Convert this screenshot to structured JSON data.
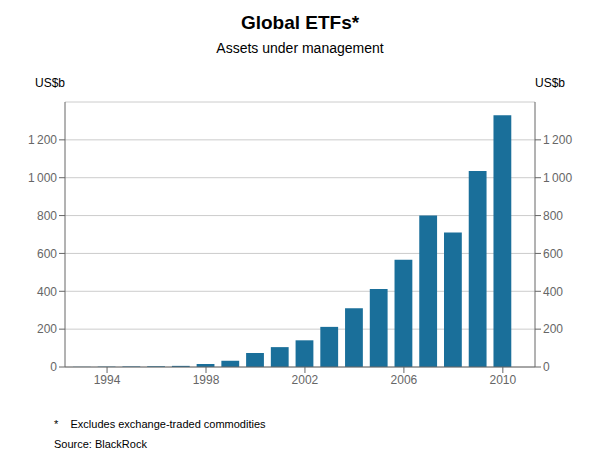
{
  "chart_data": {
    "type": "bar",
    "title": "Global ETFs*",
    "subtitle": "Assets under management",
    "ylabel": "US$b",
    "y2label": "US$b",
    "annotations": [
      "*    Excludes exchange-traded commodities",
      "Source: BlackRock"
    ],
    "x": [
      1993,
      1994,
      1995,
      1996,
      1997,
      1998,
      1999,
      2000,
      2001,
      2002,
      2003,
      2004,
      2005,
      2006,
      2007,
      2008,
      2009,
      2010
    ],
    "values": [
      1,
      2,
      3,
      4,
      6,
      16,
      33,
      74,
      105,
      141,
      212,
      310,
      412,
      566,
      800,
      710,
      1036,
      1330
    ],
    "color": "#1a6f9a",
    "xlim": [
      1992.3,
      2011.3
    ],
    "xticks": [
      1994,
      1998,
      2002,
      2006,
      2010
    ],
    "ylim": [
      0,
      1400
    ],
    "yticks": [
      0,
      200,
      400,
      600,
      800,
      {
        "value": 1000,
        "label": "1 000"
      },
      {
        "value": 1200,
        "label": "1 200"
      }
    ],
    "y2lim": [
      0,
      1400
    ],
    "y2ticks": [
      0,
      200,
      400,
      600,
      800,
      {
        "value": 1000,
        "label": "1 000"
      },
      {
        "value": 1200,
        "label": "1 200"
      }
    ],
    "grid": true
  }
}
